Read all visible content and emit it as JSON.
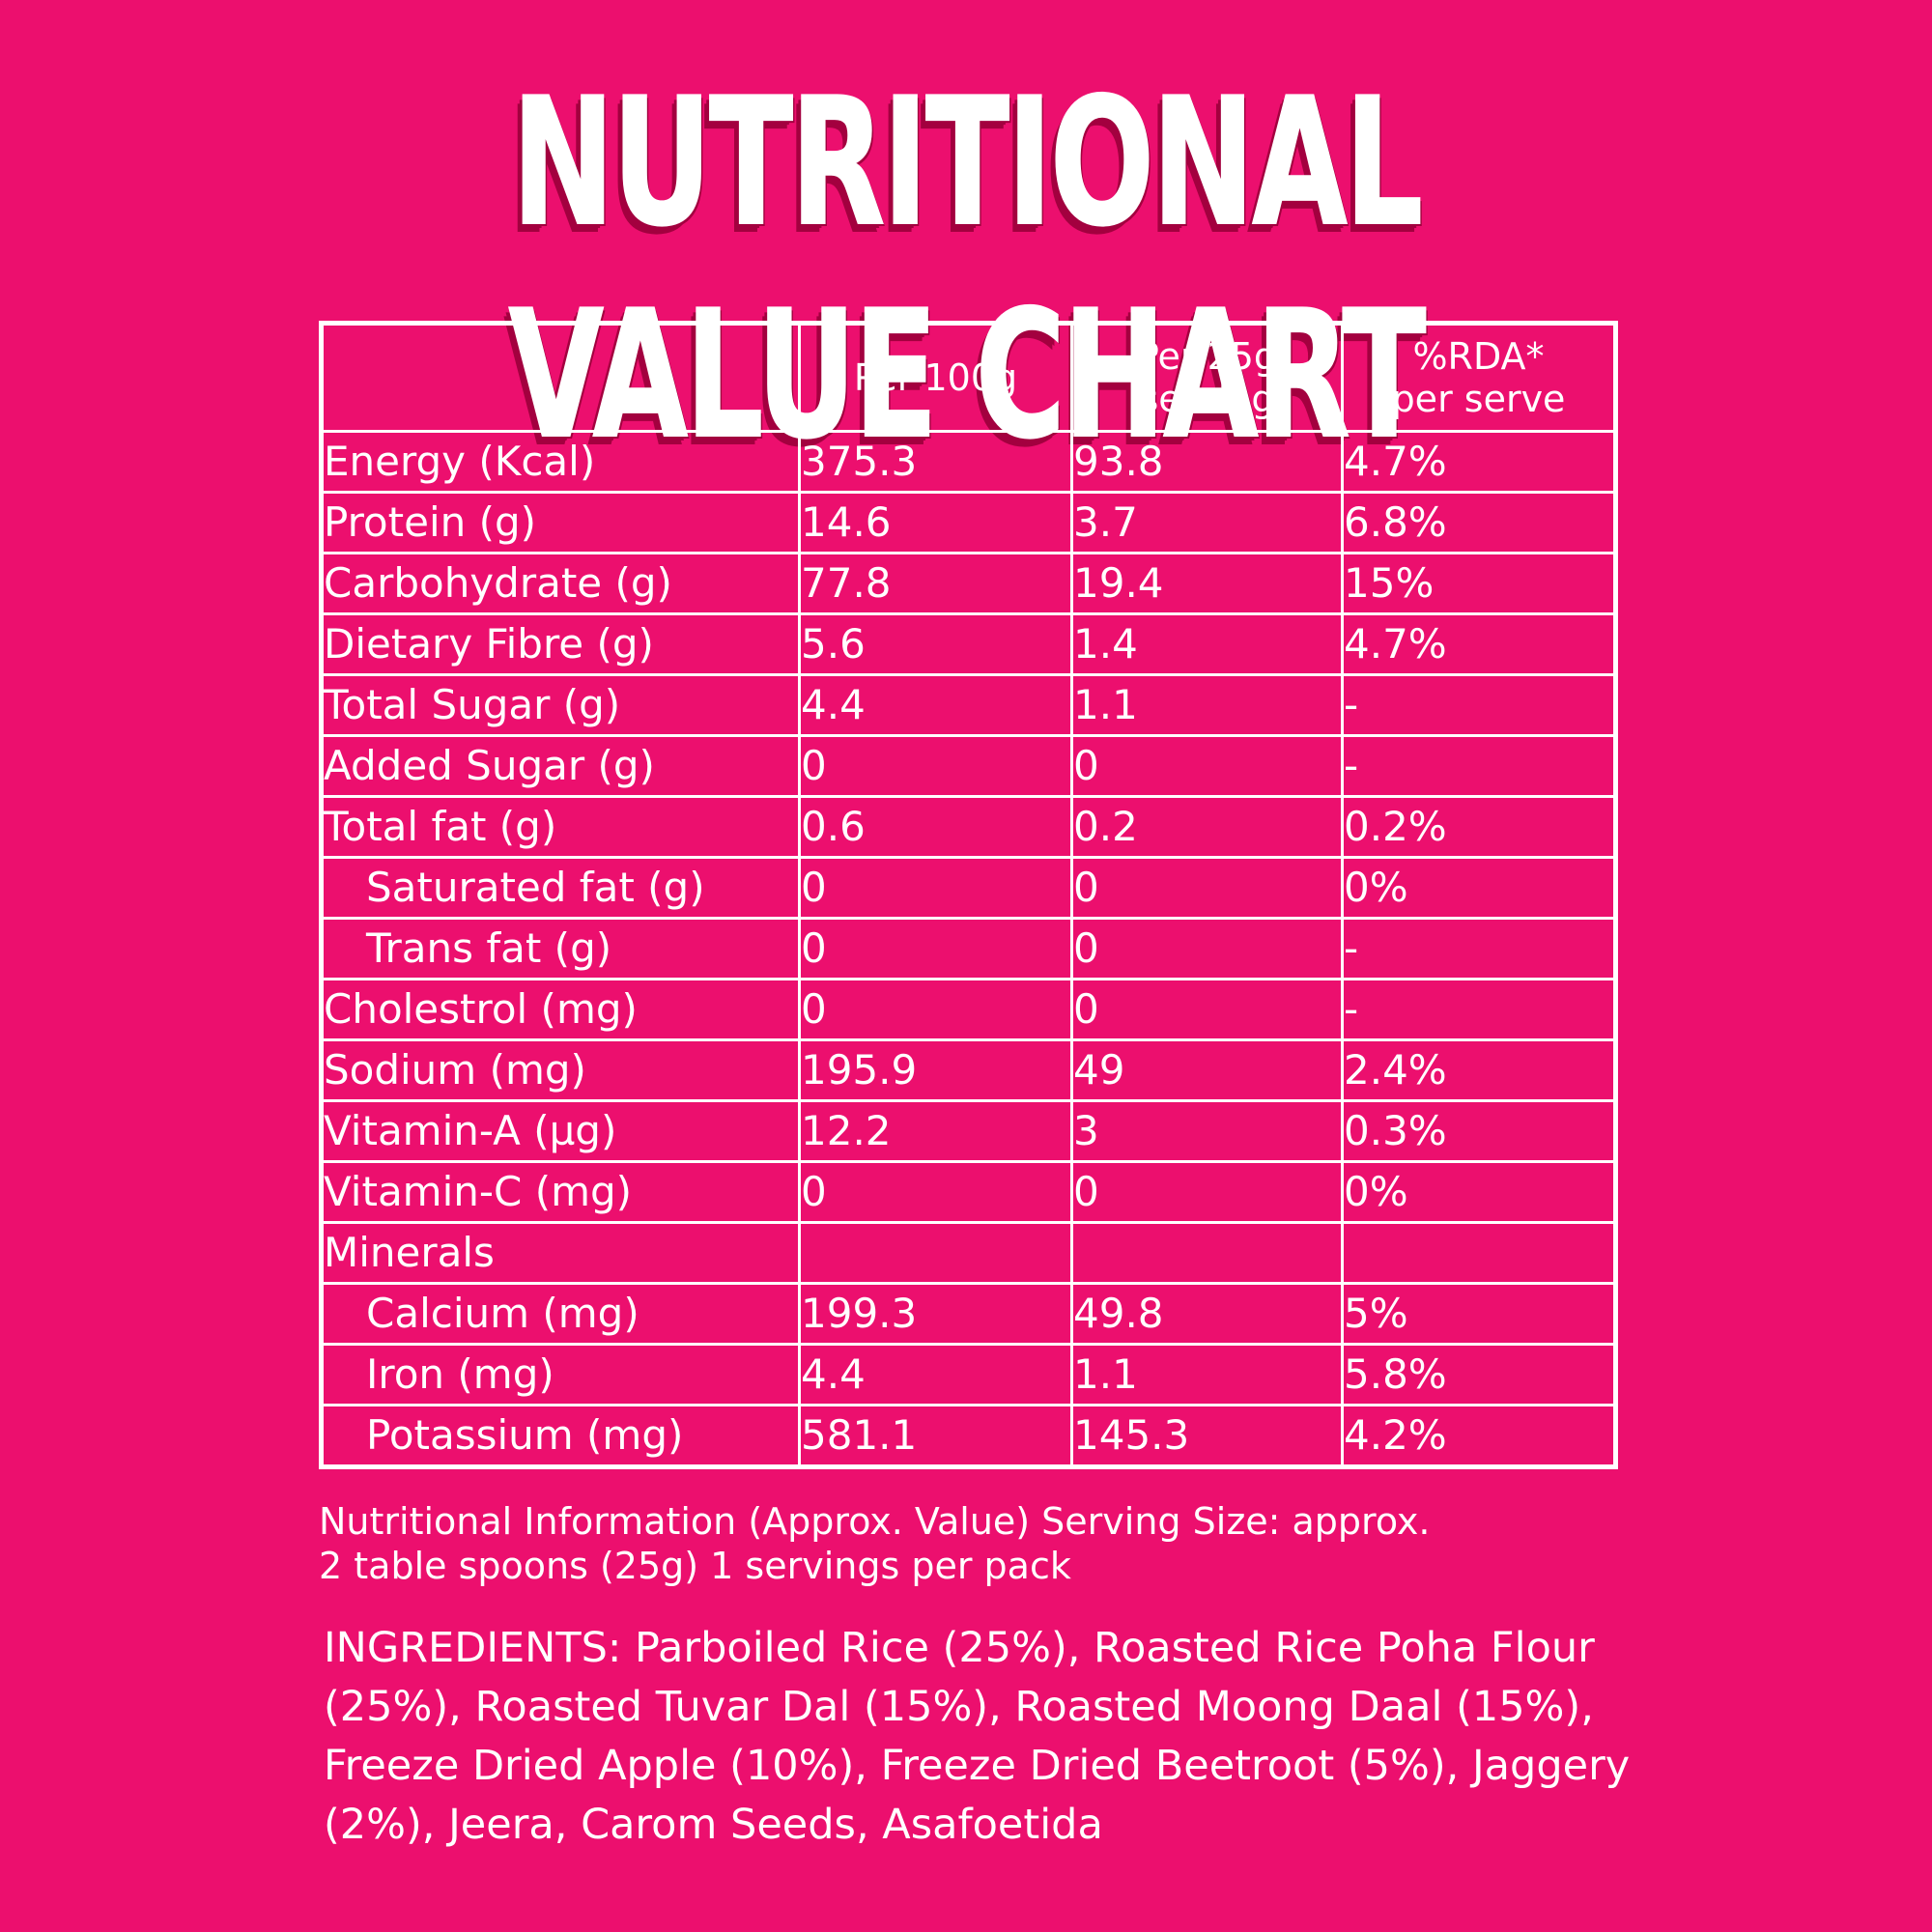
{
  "title": "NUTRITIONAL VALUE CHART",
  "table": {
    "headers": [
      "",
      "Per 100g",
      "Per 25g serving",
      "%RDA* per serve"
    ],
    "rows": [
      {
        "label": "Energy (Kcal)",
        "per100": "375.3",
        "per25": "93.8",
        "rda": "4.7%",
        "indent": false
      },
      {
        "label": "Protein (g)",
        "per100": "14.6",
        "per25": "3.7",
        "rda": "6.8%",
        "indent": false
      },
      {
        "label": "Carbohydrate (g)",
        "per100": "77.8",
        "per25": "19.4",
        "rda": "15%",
        "indent": false
      },
      {
        "label": "Dietary Fibre (g)",
        "per100": "5.6",
        "per25": "1.4",
        "rda": "4.7%",
        "indent": false
      },
      {
        "label": "Total Sugar (g)",
        "per100": "4.4",
        "per25": "1.1",
        "rda": "-",
        "indent": false
      },
      {
        "label": "Added Sugar (g)",
        "per100": "0",
        "per25": "0",
        "rda": "-",
        "indent": false
      },
      {
        "label": "Total fat (g)",
        "per100": "0.6",
        "per25": "0.2",
        "rda": "0.2%",
        "indent": false
      },
      {
        "label": "Saturated fat (g)",
        "per100": "0",
        "per25": "0",
        "rda": "0%",
        "indent": true
      },
      {
        "label": "Trans fat (g)",
        "per100": "0",
        "per25": "0",
        "rda": "-",
        "indent": true
      },
      {
        "label": "Cholestrol (mg)",
        "per100": "0",
        "per25": "0",
        "rda": "-",
        "indent": false
      },
      {
        "label": "Sodium (mg)",
        "per100": "195.9",
        "per25": "49",
        "rda": "2.4%",
        "indent": false
      },
      {
        "label": "Vitamin-A (µg)",
        "per100": "12.2",
        "per25": "3",
        "rda": "0.3%",
        "indent": false
      },
      {
        "label": "Vitamin-C (mg)",
        "per100": "0",
        "per25": "0",
        "rda": "0%",
        "indent": false
      },
      {
        "label": "Minerals",
        "per100": "",
        "per25": "",
        "rda": "",
        "indent": false
      },
      {
        "label": "Calcium (mg)",
        "per100": "199.3",
        "per25": "49.8",
        "rda": "5%",
        "indent": true
      },
      {
        "label": "Iron (mg)",
        "per100": "4.4",
        "per25": "1.1",
        "rda": "5.8%",
        "indent": true
      },
      {
        "label": "Potassium (mg)",
        "per100": "581.1",
        "per25": "145.3",
        "rda": "4.2%",
        "indent": true
      }
    ]
  },
  "footnote": {
    "line1": "Nutritional Information (Approx. Value) Serving Size: approx.",
    "line2": "2 table spoons (25g) 1 servings per pack"
  },
  "ingredients": "INGREDIENTS: Parboiled Rice (25%), Roasted Rice Poha Flour (25%), Roasted Tuvar Dal (15%), Roasted Moong Daal (15%), Freeze Dried Apple (10%), Freeze Dried Beetroot (5%), Jaggery (2%), Jeera, Carom Seeds, Asafoetida"
}
